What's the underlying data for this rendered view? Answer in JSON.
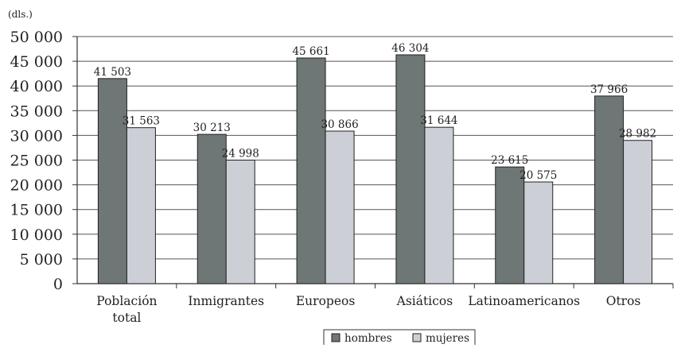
{
  "chart_data": {
    "type": "bar",
    "unit_label": "(dls.)",
    "categories": [
      [
        "Población",
        "total"
      ],
      [
        "Inmigrantes"
      ],
      [
        "Europeos"
      ],
      [
        "Asiáticos"
      ],
      [
        "Latinoamericanos"
      ],
      [
        "Otros"
      ]
    ],
    "series": [
      {
        "name": "hombres",
        "color": "#6e7676",
        "values": [
          41503,
          30213,
          45661,
          46304,
          23615,
          37966
        ],
        "labels": [
          "41 503",
          "30 213",
          "45 661",
          "46 304",
          "23 615",
          "37 966"
        ]
      },
      {
        "name": "mujeres",
        "color": "#cccfd6",
        "values": [
          31563,
          24998,
          30866,
          31644,
          20575,
          28982
        ],
        "labels": [
          "31 563",
          "24 998",
          "30 866",
          "31 644",
          "20 575",
          "28 982"
        ]
      }
    ],
    "ylim": [
      0,
      50000
    ],
    "yticks": [
      0,
      5000,
      10000,
      15000,
      20000,
      25000,
      30000,
      35000,
      40000,
      45000,
      50000
    ],
    "ytick_labels": [
      "0",
      "5 000",
      "10 000",
      "15 000",
      "20 000",
      "25 000",
      "30 000",
      "35 000",
      "40 000",
      "45 000",
      "50 000"
    ],
    "grid": true,
    "legend_position": "bottom-center"
  }
}
